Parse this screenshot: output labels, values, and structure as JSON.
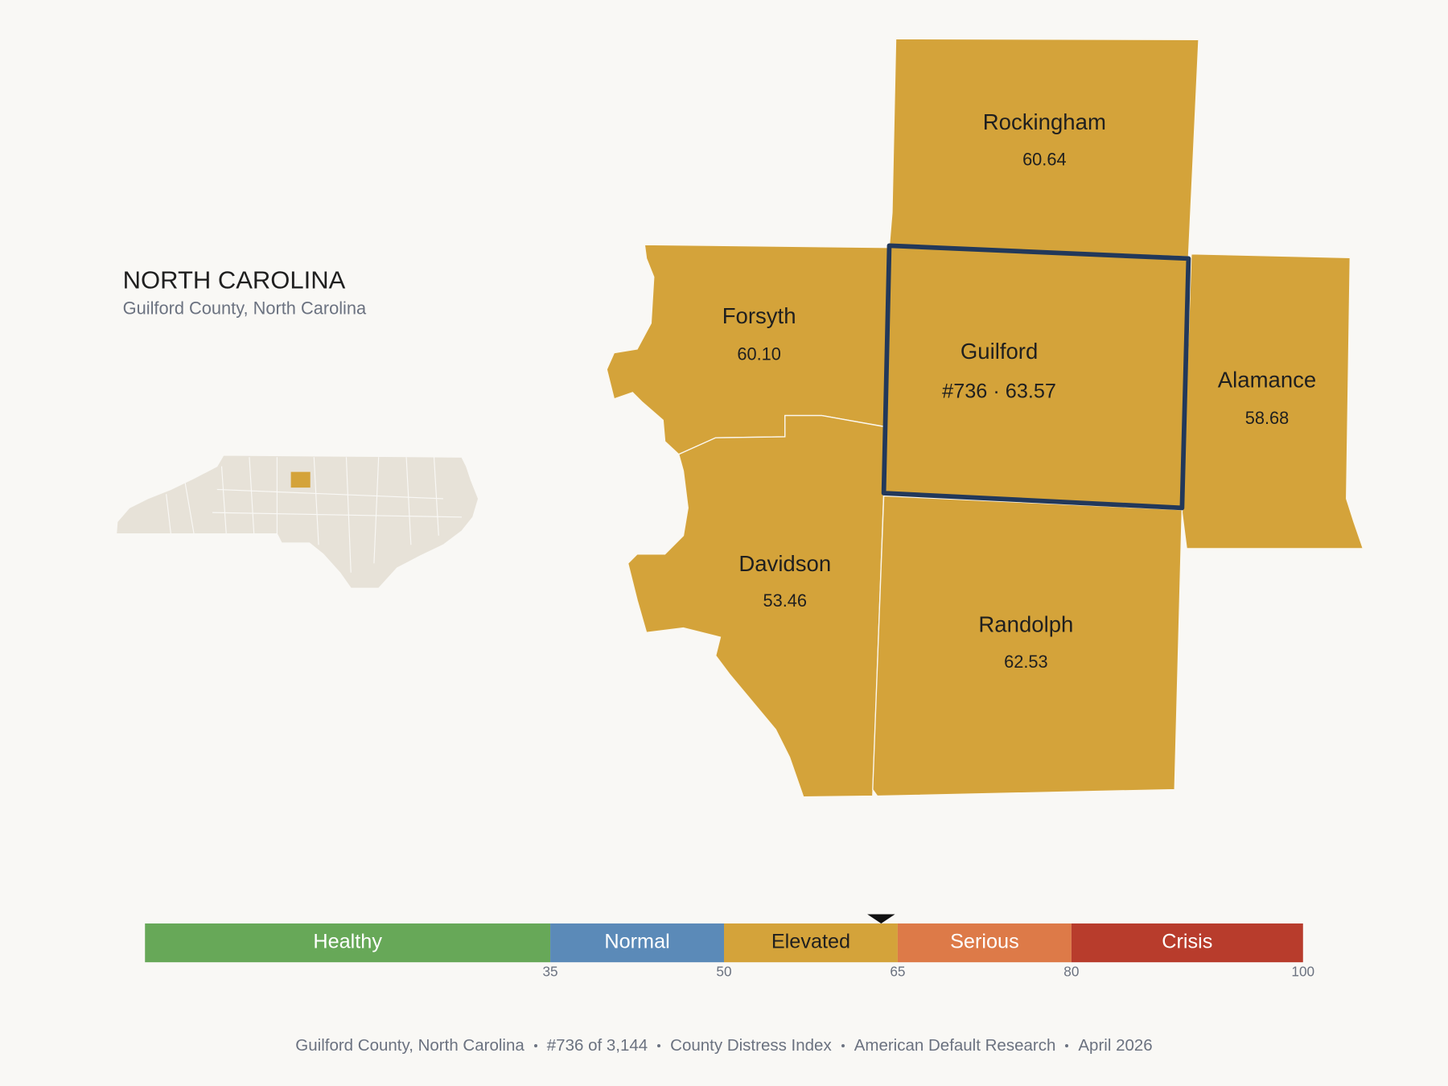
{
  "header": {
    "title": "NORTH CAROLINA",
    "subtitle": "Guilford County, North Carolina"
  },
  "counties": [
    {
      "name": "Rockingham",
      "label": "60.64"
    },
    {
      "name": "Forsyth",
      "label": "60.10"
    },
    {
      "name": "Guilford",
      "label": "#736 · 63.57"
    },
    {
      "name": "Alamance",
      "label": "58.68"
    },
    {
      "name": "Davidson",
      "label": "53.46"
    },
    {
      "name": "Randolph",
      "label": "62.53"
    }
  ],
  "scale": {
    "min": 0,
    "max": 100,
    "marker": 63.57,
    "ticks": [
      35,
      50,
      65,
      80,
      100
    ],
    "bands": [
      {
        "label": "Healthy",
        "color": "#67a858"
      },
      {
        "label": "Normal",
        "color": "#5b8ab8"
      },
      {
        "label": "Elevated",
        "color": "#d4a33a"
      },
      {
        "label": "Serious",
        "color": "#dd7a48"
      },
      {
        "label": "Crisis",
        "color": "#b83c2c"
      }
    ]
  },
  "footer": [
    "Guilford County, North Carolina",
    "#736 of 3,144",
    "County Distress Index",
    "American Default Research",
    "April 2026"
  ]
}
